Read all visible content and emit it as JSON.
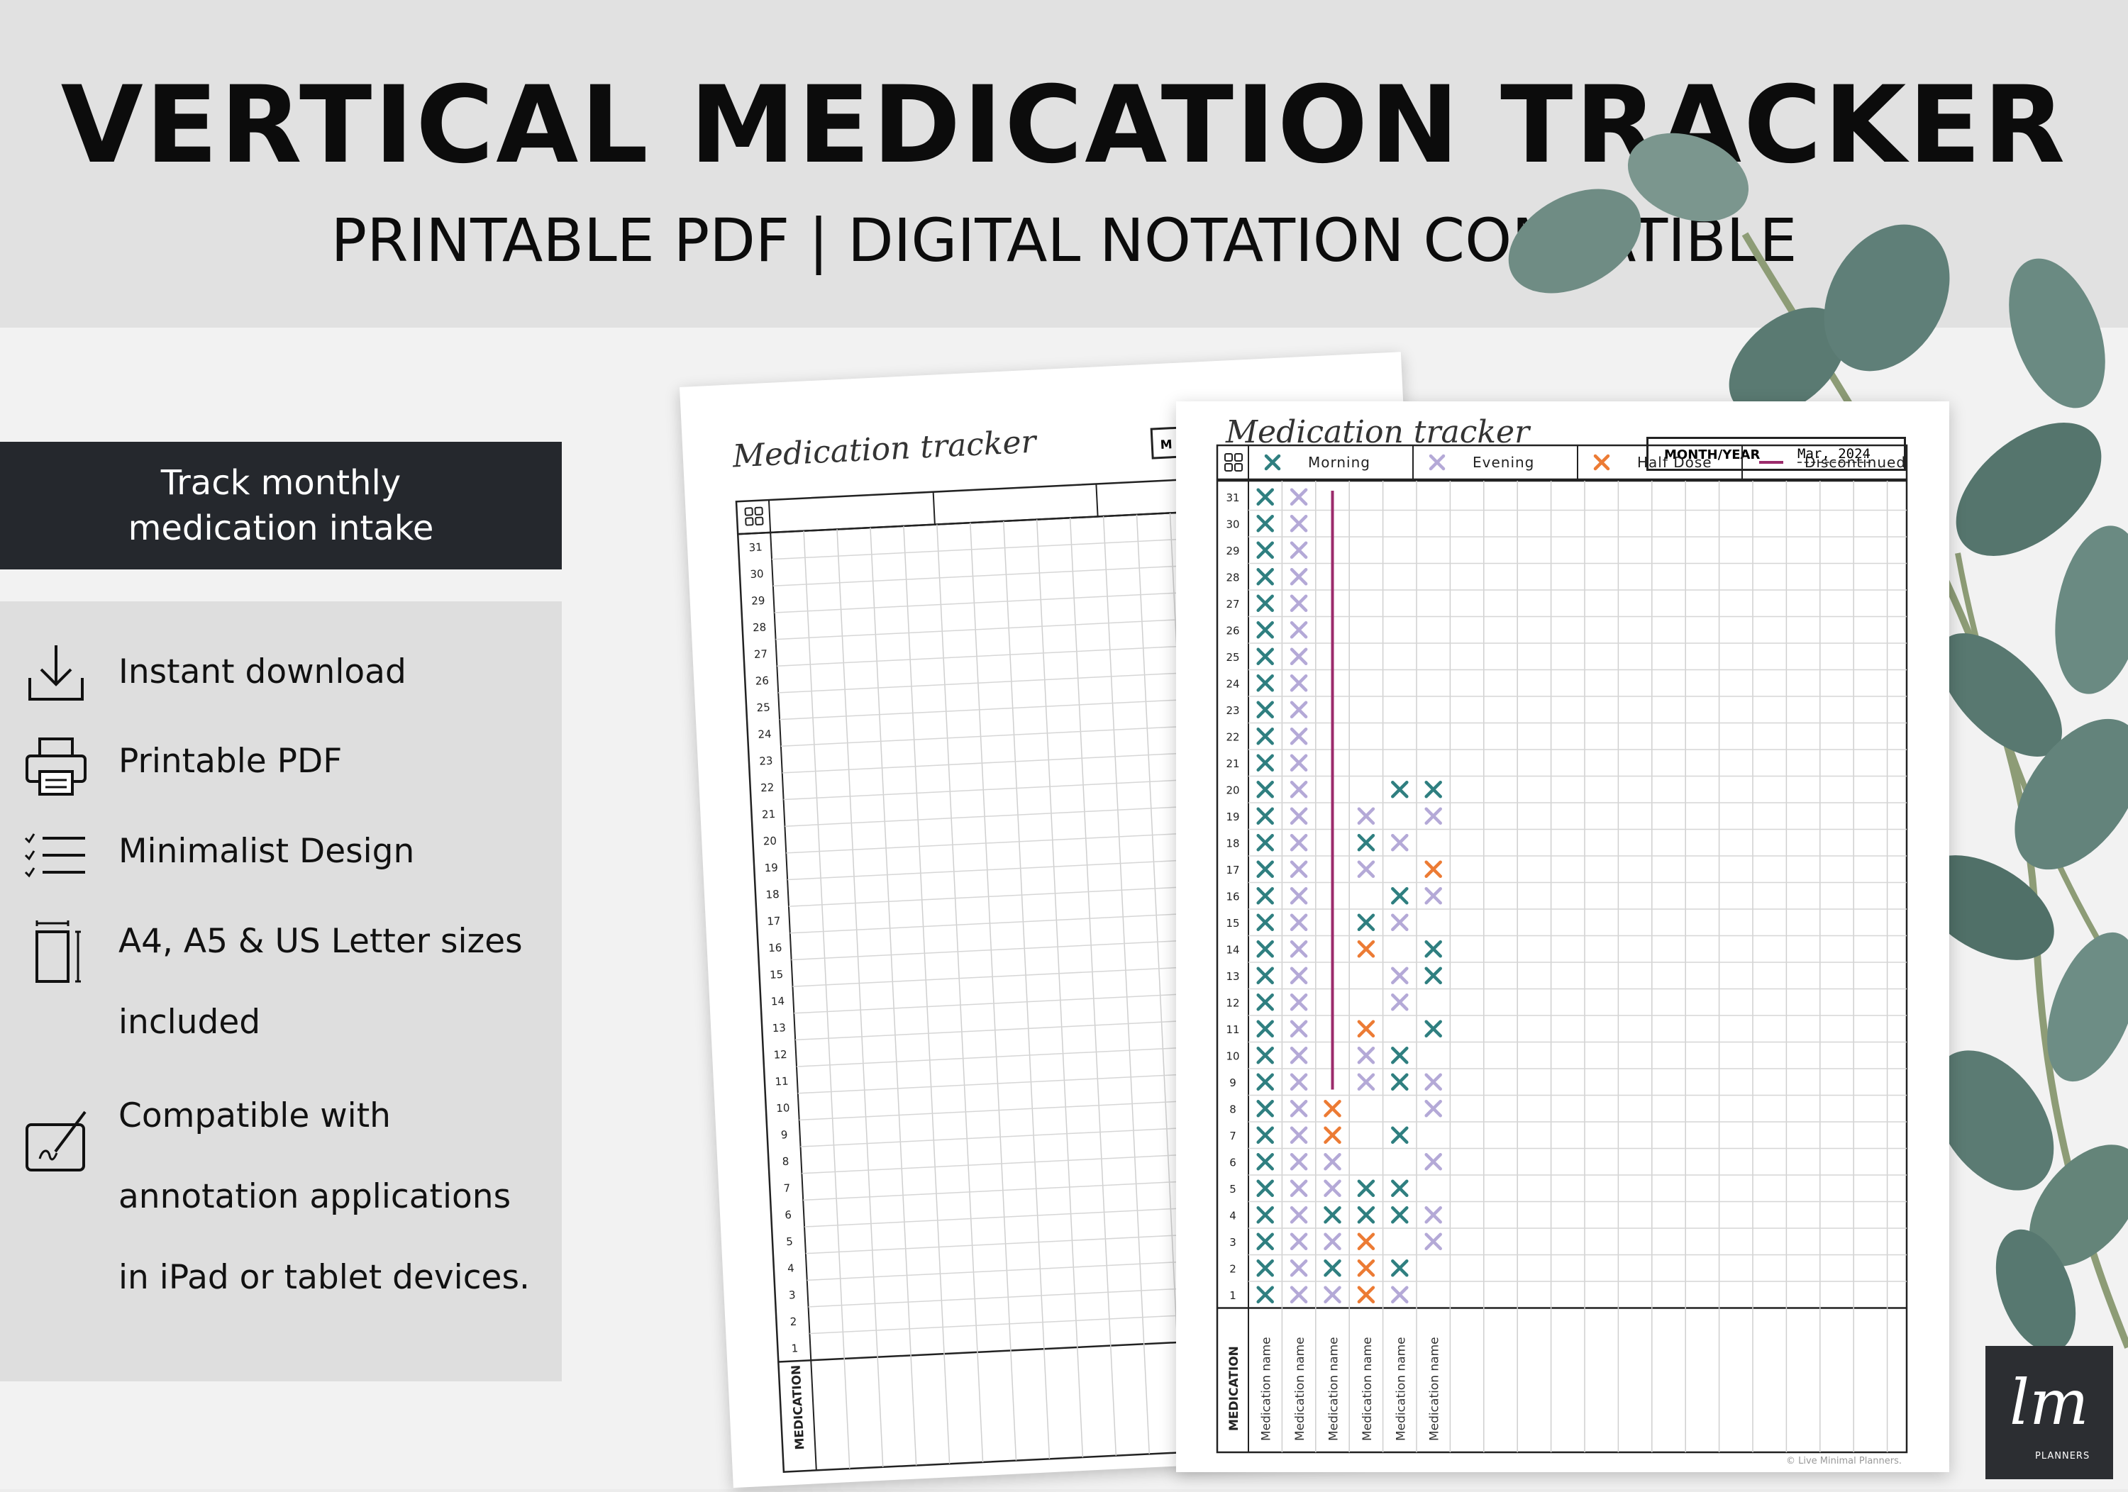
{
  "header": {
    "title": "VERTICAL MEDICATION TRACKER",
    "subtitle": "PRINTABLE PDF | DIGITAL NOTATION COMPATIBLE"
  },
  "tagline": {
    "line1": "Track monthly",
    "line2": "medication intake"
  },
  "features": [
    {
      "icon": "download-icon",
      "lines": [
        "Instant download"
      ]
    },
    {
      "icon": "printer-icon",
      "lines": [
        "Printable PDF"
      ]
    },
    {
      "icon": "checklist-icon",
      "lines": [
        "Minimalist Design"
      ]
    },
    {
      "icon": "page-size-icon",
      "lines": [
        "A4, A5 & US Letter sizes",
        "included"
      ]
    },
    {
      "icon": "tablet-pen-icon",
      "lines": [
        "Compatible with",
        "annotation applications",
        "in iPad or tablet devices."
      ]
    }
  ],
  "tracker": {
    "title": "Medication tracker",
    "month_label": "MONTH/YEAR",
    "month_value": "Mar, 2024",
    "back_month_label": "M",
    "legend": [
      {
        "label": "Morning",
        "color": "#2f7f80",
        "type": "x"
      },
      {
        "label": "Evening",
        "color": "#b4a9d7",
        "type": "x"
      },
      {
        "label": "Half Dose",
        "color": "#ec7b34",
        "type": "x"
      },
      {
        "label": "Discontinued",
        "color": "#9b2b6b",
        "type": "line"
      }
    ],
    "medication_header": "MEDICATION",
    "medication_names": [
      "Medication name",
      "Medication name",
      "Medication name",
      "Medication name",
      "Medication name",
      "Medication name"
    ],
    "days": 31,
    "marks": {
      "1": [
        "M",
        "E",
        "E",
        "H",
        "E"
      ],
      "2": [
        "M",
        "E",
        "M",
        "H",
        "M"
      ],
      "3": [
        "M",
        "E",
        "E",
        "H",
        "",
        "E"
      ],
      "4": [
        "M",
        "E",
        "M",
        "M",
        "M",
        "E"
      ],
      "5": [
        "M",
        "E",
        "E",
        "M",
        "M"
      ],
      "6": [
        "M",
        "E",
        "E",
        "",
        "",
        "E"
      ],
      "7": [
        "M",
        "E",
        "H",
        "",
        "M"
      ],
      "8": [
        "M",
        "E",
        "H",
        "",
        "",
        "E"
      ],
      "9": [
        "M",
        "E",
        "",
        "E",
        "M",
        "E"
      ],
      "10": [
        "M",
        "E",
        "",
        "E",
        "M"
      ],
      "11": [
        "M",
        "E",
        "",
        "H",
        "",
        "M"
      ],
      "12": [
        "M",
        "E",
        "",
        "",
        "E"
      ],
      "13": [
        "M",
        "E",
        "",
        "",
        "E",
        "M"
      ],
      "14": [
        "M",
        "E",
        "",
        "H",
        "",
        "M"
      ],
      "15": [
        "M",
        "E",
        "",
        "M",
        "E"
      ],
      "16": [
        "M",
        "E",
        "",
        "",
        "M",
        "E"
      ],
      "17": [
        "M",
        "E",
        "",
        "E",
        "",
        "H"
      ],
      "18": [
        "M",
        "E",
        "",
        "M",
        "E"
      ],
      "19": [
        "M",
        "E",
        "",
        "E",
        "",
        "E"
      ],
      "20": [
        "M",
        "E",
        "",
        "",
        "M",
        "M"
      ],
      "21": [
        "M",
        "E"
      ],
      "22": [
        "M",
        "E"
      ],
      "23": [
        "M",
        "E"
      ],
      "24": [
        "M",
        "E"
      ],
      "25": [
        "M",
        "E"
      ],
      "26": [
        "M",
        "E"
      ],
      "27": [
        "M",
        "E"
      ],
      "28": [
        "M",
        "E"
      ],
      "29": [
        "M",
        "E"
      ],
      "30": [
        "M",
        "E"
      ],
      "31": [
        "M",
        "E"
      ]
    },
    "discontinued_column": 3,
    "discontinued_from_day": 9
  },
  "copyright": "© Live Minimal Planners.",
  "logo": {
    "mark": "lm",
    "text": "PLANNERS"
  },
  "colors": {
    "tagbox": "#25282d",
    "leaf": "#5f7f78"
  }
}
